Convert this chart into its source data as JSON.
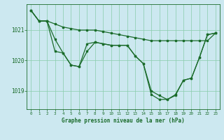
{
  "title": "Graphe pression niveau de la mer (hPa)",
  "bg_color": "#cce8f0",
  "grid_color": "#88ccaa",
  "line_color": "#1a6b2a",
  "xlim": [
    -0.5,
    23.5
  ],
  "ylim": [
    1018.4,
    1021.85
  ],
  "yticks": [
    1019,
    1020,
    1021
  ],
  "xticks": [
    0,
    1,
    2,
    3,
    4,
    5,
    6,
    7,
    8,
    9,
    10,
    11,
    12,
    13,
    14,
    15,
    16,
    17,
    18,
    19,
    20,
    21,
    22,
    23
  ],
  "series1_x": [
    0,
    1,
    2,
    3,
    4,
    5,
    6,
    7,
    8,
    9,
    10,
    11,
    12,
    13,
    14,
    15,
    16,
    17,
    18,
    19,
    20,
    21,
    22,
    23
  ],
  "series1_y": [
    1021.65,
    1021.3,
    1021.3,
    1021.2,
    1021.1,
    1021.05,
    1021.0,
    1021.0,
    1021.0,
    1020.95,
    1020.9,
    1020.85,
    1020.8,
    1020.75,
    1020.7,
    1020.65,
    1020.65,
    1020.65,
    1020.65,
    1020.65,
    1020.65,
    1020.65,
    1020.65,
    1020.9
  ],
  "series2_x": [
    0,
    1,
    2,
    3,
    4,
    5,
    6,
    7,
    8,
    9,
    10,
    11,
    12,
    13,
    14,
    15,
    16,
    17,
    18,
    19,
    20,
    21,
    22,
    23
  ],
  "series2_y": [
    1021.65,
    1021.3,
    1021.3,
    1020.7,
    1020.25,
    1019.85,
    1019.8,
    1020.55,
    1020.6,
    1020.55,
    1020.5,
    1020.5,
    1020.5,
    1020.15,
    1019.9,
    1019.0,
    1018.85,
    1018.72,
    1018.85,
    1019.35,
    1019.42,
    1020.1,
    1020.85,
    1020.9
  ],
  "series3_x": [
    0,
    1,
    2,
    3,
    4,
    5,
    6,
    7,
    8,
    9,
    10,
    11,
    12,
    13,
    14,
    15,
    16,
    17,
    18,
    19,
    20,
    21,
    22,
    23
  ],
  "series3_y": [
    1021.65,
    1021.3,
    1021.3,
    1020.3,
    1020.25,
    1019.85,
    1019.8,
    1020.3,
    1020.6,
    1020.55,
    1020.5,
    1020.5,
    1020.5,
    1020.15,
    1019.9,
    1018.88,
    1018.72,
    1018.72,
    1018.88,
    1019.35,
    1019.42,
    1020.1,
    1020.85,
    1020.9
  ]
}
